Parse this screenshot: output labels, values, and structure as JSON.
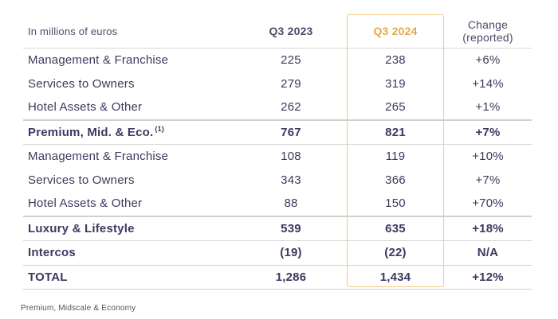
{
  "header": {
    "label": "In millions of euros",
    "col_2023": "Q3 2023",
    "col_2024": "Q3 2024",
    "change_line1": "Change",
    "change_line2": "(reported)"
  },
  "rows": [
    {
      "label": "Management & Franchise",
      "q3_2023": "225",
      "q3_2024": "238",
      "change": "+6%"
    },
    {
      "label": "Services to Owners",
      "q3_2023": "279",
      "q3_2024": "319",
      "change": "+14%"
    },
    {
      "label": "Hotel Assets & Other",
      "q3_2023": "262",
      "q3_2024": "265",
      "change": "+1%"
    },
    {
      "label": "Premium, Mid. & Eco.",
      "sup": "(1)",
      "q3_2023": "767",
      "q3_2024": "821",
      "change": "+7%"
    },
    {
      "label": "Management & Franchise",
      "q3_2023": "108",
      "q3_2024": "119",
      "change": "+10%"
    },
    {
      "label": "Services to Owners",
      "q3_2023": "343",
      "q3_2024": "366",
      "change": "+7%"
    },
    {
      "label": "Hotel Assets & Other",
      "q3_2023": "88",
      "q3_2024": "150",
      "change": "+70%"
    },
    {
      "label": "Luxury & Lifestyle",
      "q3_2023": "539",
      "q3_2024": "635",
      "change": "+18%"
    },
    {
      "label": "Intercos",
      "q3_2023": "(19)",
      "q3_2024": "(22)",
      "change": "N/A"
    },
    {
      "label": "TOTAL",
      "q3_2023": "1,286",
      "q3_2024": "1,434",
      "change": "+12%"
    }
  ],
  "footnote": "Premium, Midscale & Economy",
  "colors": {
    "text": "#3b3a5e",
    "highlight_border": "#f1c98b",
    "highlight_header": "#e2a94f"
  }
}
